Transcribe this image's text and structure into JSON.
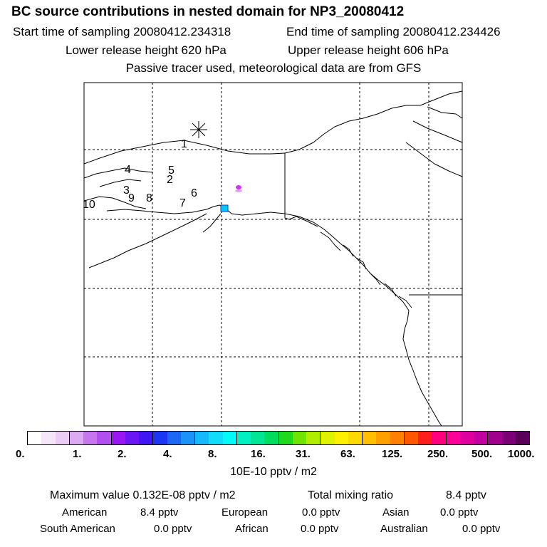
{
  "header": {
    "title": "BC  source contributions in nested domain for NP3_20080412",
    "start_time": "Start time of sampling 20080412.234318",
    "end_time": "End time of sampling 20080412.234426",
    "lower_height": "Lower release height  620 hPa",
    "upper_height": "Upper release height  606 hPa",
    "tracer_note": "Passive tracer used, meteorological data are from GFS"
  },
  "map": {
    "trajectory_labels": [
      "1",
      "2",
      "3",
      "4",
      "5",
      "6",
      "7",
      "8",
      "9",
      "10"
    ],
    "colors": {
      "coast": "#000000",
      "grid": "#000000",
      "hotspot_cyan": "#00c8ff",
      "hotspot_magenta": "#cc33ff"
    }
  },
  "colorbar": {
    "colors": [
      "#ffffff",
      "#f6e6fb",
      "#eccbf6",
      "#dcaaf2",
      "#c777ee",
      "#b14ff0",
      "#9a17f3",
      "#6b17f5",
      "#3f17f5",
      "#1d35f5",
      "#1d67f5",
      "#1d93f7",
      "#16b9f9",
      "#11dcfb",
      "#00fbf7",
      "#00f0c4",
      "#00e694",
      "#00dc5c",
      "#20d81c",
      "#70e400",
      "#b0ee00",
      "#e0f200",
      "#fff000",
      "#ffd800",
      "#ffbf00",
      "#ff9f00",
      "#ff7f00",
      "#ff5700",
      "#ff1e1e",
      "#ff007f",
      "#ff0099",
      "#e000a0",
      "#c2009f",
      "#a0008c",
      "#7c0075",
      "#5a0058"
    ],
    "ticks": [
      "0.",
      "1.",
      "2.",
      "4.",
      "8.",
      "16.",
      "31.",
      "63.",
      "125.",
      "250.",
      "500.",
      "1000."
    ],
    "units": "10E-10 pptv / m2"
  },
  "stats": {
    "max_value": "Maximum value  0.132E-08 pptv / m2",
    "total_label": "Total mixing ratio",
    "total_value": "8.4 pptv",
    "regions": [
      {
        "name": "American",
        "value": "8.4 pptv"
      },
      {
        "name": "European",
        "value": "0.0 pptv"
      },
      {
        "name": "Asian",
        "value": "0.0 pptv"
      },
      {
        "name": "South American",
        "value": "0.0 pptv"
      },
      {
        "name": "African",
        "value": "0.0 pptv"
      },
      {
        "name": "Australian",
        "value": "0.0 pptv"
      }
    ]
  }
}
